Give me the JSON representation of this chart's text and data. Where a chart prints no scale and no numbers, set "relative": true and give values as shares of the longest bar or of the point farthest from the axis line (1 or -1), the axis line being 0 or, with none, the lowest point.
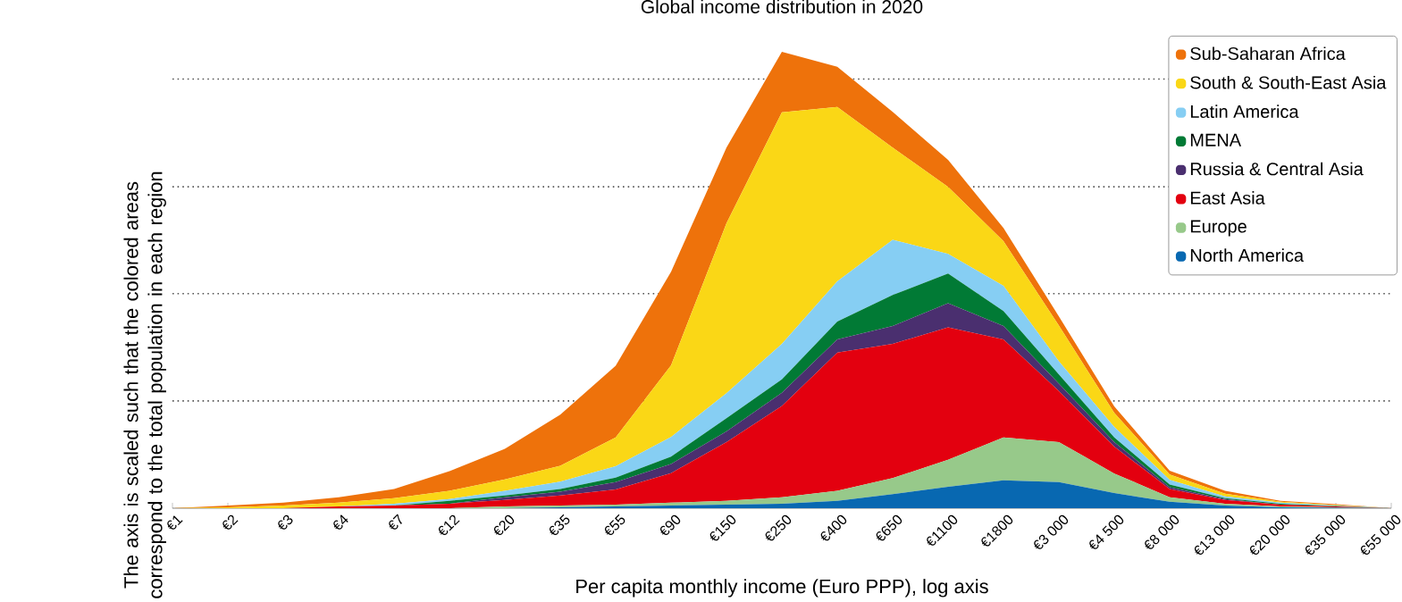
{
  "chart_data": {
    "type": "area",
    "stacked": true,
    "relative": true,
    "title": "Global income distribution in 2020",
    "xlabel": "Per capita monthly income (Euro PPP), log axis",
    "ylabel": "The axis is scaled such that the colored areas correspond to the total population in each region",
    "categories": [
      "€1",
      "€2",
      "€3",
      "€4",
      "€7",
      "€12",
      "€20",
      "€35",
      "€55",
      "€90",
      "€150",
      "€250",
      "€400",
      "€650",
      "€1100",
      "€1800",
      "€3 000",
      "€4 500",
      "€8 000",
      "€13 000",
      "€20 000",
      "€35 000",
      "€55 000"
    ],
    "legend": "top right",
    "ref_lines": [
      {
        "axis": "y",
        "value": 0.235,
        "line_style": "dotted",
        "color": "#555555"
      },
      {
        "axis": "y",
        "value": 0.47,
        "line_style": "dotted",
        "color": "#555555"
      },
      {
        "axis": "y",
        "value": 0.704,
        "line_style": "dotted",
        "color": "#555555"
      },
      {
        "axis": "y",
        "value": 0.94,
        "line_style": "dotted",
        "color": "#555555"
      }
    ],
    "series": [
      {
        "name": "North America",
        "color": "#0868b1",
        "values": [
          0,
          0,
          0,
          0,
          0,
          0,
          0,
          0.002,
          0.004,
          0.006,
          0.008,
          0.01,
          0.016,
          0.031,
          0.047,
          0.061,
          0.057,
          0.033,
          0.014,
          0.006,
          0.002,
          0.001,
          0
        ]
      },
      {
        "name": "Europe",
        "color": "#97c98a",
        "values": [
          0,
          0,
          0,
          0,
          0,
          0,
          0.004,
          0.004,
          0.004,
          0.006,
          0.008,
          0.014,
          0.022,
          0.035,
          0.059,
          0.094,
          0.088,
          0.043,
          0.01,
          0.004,
          0.002,
          0.001,
          0
        ]
      },
      {
        "name": "East Asia",
        "color": "#e3000f",
        "values": [
          0,
          0,
          0,
          0.004,
          0.006,
          0.01,
          0.014,
          0.022,
          0.033,
          0.065,
          0.129,
          0.2,
          0.303,
          0.294,
          0.29,
          0.215,
          0.112,
          0.059,
          0.018,
          0.008,
          0.004,
          0.002,
          0
        ]
      },
      {
        "name": "Russia & Central Asia",
        "color": "#4a2f6f",
        "values": [
          0,
          0,
          0,
          0,
          0,
          0,
          0.006,
          0.008,
          0.016,
          0.02,
          0.023,
          0.029,
          0.029,
          0.039,
          0.053,
          0.029,
          0.016,
          0.01,
          0.004,
          0.002,
          0,
          0,
          0
        ]
      },
      {
        "name": "MENA",
        "color": "#017a35",
        "values": [
          0,
          0,
          0,
          0,
          0,
          0.006,
          0.004,
          0.006,
          0.01,
          0.016,
          0.029,
          0.029,
          0.039,
          0.068,
          0.065,
          0.033,
          0.02,
          0.01,
          0.006,
          0.002,
          0.002,
          0.001,
          0
        ]
      },
      {
        "name": "Latin America",
        "color": "#86cef3",
        "values": [
          0,
          0,
          0,
          0,
          0.004,
          0.004,
          0.01,
          0.016,
          0.025,
          0.043,
          0.055,
          0.078,
          0.088,
          0.121,
          0.043,
          0.055,
          0.029,
          0.023,
          0.01,
          0.004,
          0.002,
          0.001,
          0
        ]
      },
      {
        "name": "South & South-East Asia",
        "color": "#fad716",
        "values": [
          0,
          0.002,
          0.006,
          0.008,
          0.012,
          0.018,
          0.025,
          0.035,
          0.063,
          0.157,
          0.372,
          0.507,
          0.382,
          0.202,
          0.147,
          0.098,
          0.078,
          0.031,
          0.012,
          0.006,
          0.002,
          0.001,
          0
        ]
      },
      {
        "name": "Sub-Saharan Africa",
        "color": "#ee720b",
        "values": [
          0,
          0.004,
          0.006,
          0.012,
          0.02,
          0.043,
          0.067,
          0.112,
          0.157,
          0.205,
          0.166,
          0.133,
          0.088,
          0.078,
          0.059,
          0.029,
          0.02,
          0.014,
          0.008,
          0.006,
          0.002,
          0.002,
          0
        ]
      }
    ]
  }
}
